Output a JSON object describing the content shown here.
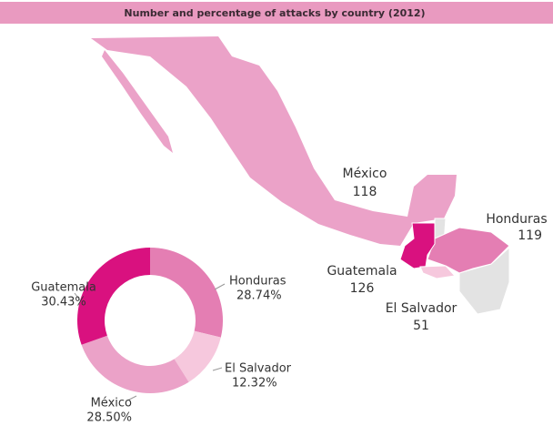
{
  "chart_data": {
    "type": "pie",
    "donut": true,
    "title": "Number and percentage of attacks by country (2012)",
    "categories": [
      "Honduras",
      "El Salvador",
      "México",
      "Guatemala"
    ],
    "values": [
      28.74,
      12.32,
      28.5,
      30.43
    ],
    "value_labels": [
      "28.74%",
      "12.32%",
      "28.50%",
      "30.43%"
    ],
    "colors": [
      "#e47eb3",
      "#f6c8dd",
      "#eba2c8",
      "#d9117f"
    ]
  },
  "map": {
    "countries": [
      {
        "name": "México",
        "count": 118
      },
      {
        "name": "Honduras",
        "count": 119
      },
      {
        "name": "Guatemala",
        "count": 126
      },
      {
        "name": "El Salvador",
        "count": 51
      }
    ]
  }
}
